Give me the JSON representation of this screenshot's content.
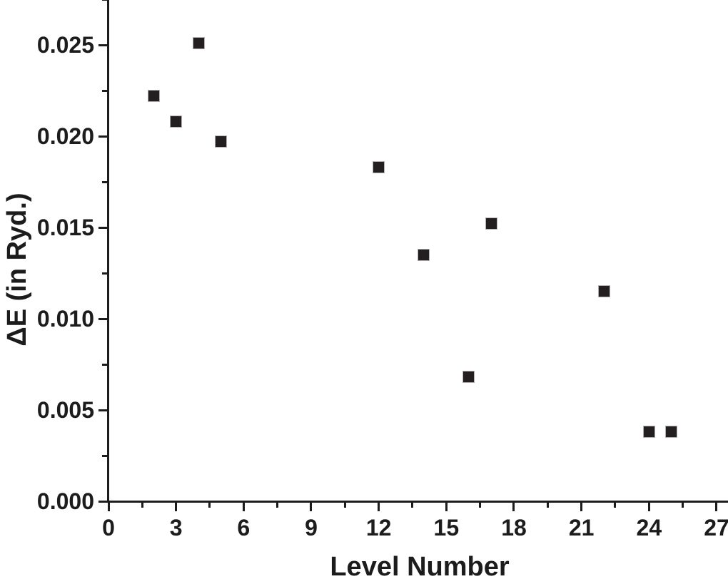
{
  "colors": {
    "ink": "#1c1c1c",
    "marker_fill": "#231f20",
    "marker_halo": "#b3afaf",
    "background": "#ffffff"
  },
  "chart_data": {
    "type": "scatter",
    "title": "",
    "xlabel": "Level Number",
    "ylabel": "ΔE (in Ryd.)",
    "xlim": [
      0,
      27.5
    ],
    "ylim": [
      0.0,
      0.0275
    ],
    "grid": false,
    "legend": "none",
    "marker_style": "filled-square",
    "x_major_ticks": [
      0,
      3,
      6,
      9,
      12,
      15,
      18,
      21,
      24,
      27
    ],
    "x_tick_labels": [
      "0",
      "3",
      "6",
      "9",
      "12",
      "15",
      "18",
      "21",
      "24",
      "27"
    ],
    "x_minor_ticks": [
      1.5,
      4.5,
      7.5,
      10.5,
      13.5,
      16.5,
      19.5,
      22.5,
      25.5
    ],
    "y_major_ticks": [
      0.0,
      0.005,
      0.01,
      0.015,
      0.02,
      0.025
    ],
    "y_tick_labels": [
      "0.000",
      "0.005",
      "0.010",
      "0.015",
      "0.020",
      "0.025"
    ],
    "y_minor_ticks": [
      0.0025,
      0.0075,
      0.0125,
      0.0175,
      0.0225,
      0.0275
    ],
    "series": [
      {
        "name": "delta-E-vs-level",
        "points": [
          {
            "x": 2,
            "y": 0.0222
          },
          {
            "x": 3,
            "y": 0.0208
          },
          {
            "x": 4,
            "y": 0.0251
          },
          {
            "x": 5,
            "y": 0.0197
          },
          {
            "x": 12,
            "y": 0.0183
          },
          {
            "x": 14,
            "y": 0.0135
          },
          {
            "x": 16,
            "y": 0.0068
          },
          {
            "x": 17,
            "y": 0.0152
          },
          {
            "x": 22,
            "y": 0.0115
          },
          {
            "x": 24,
            "y": 0.0038
          },
          {
            "x": 25,
            "y": 0.0038
          }
        ]
      }
    ]
  }
}
